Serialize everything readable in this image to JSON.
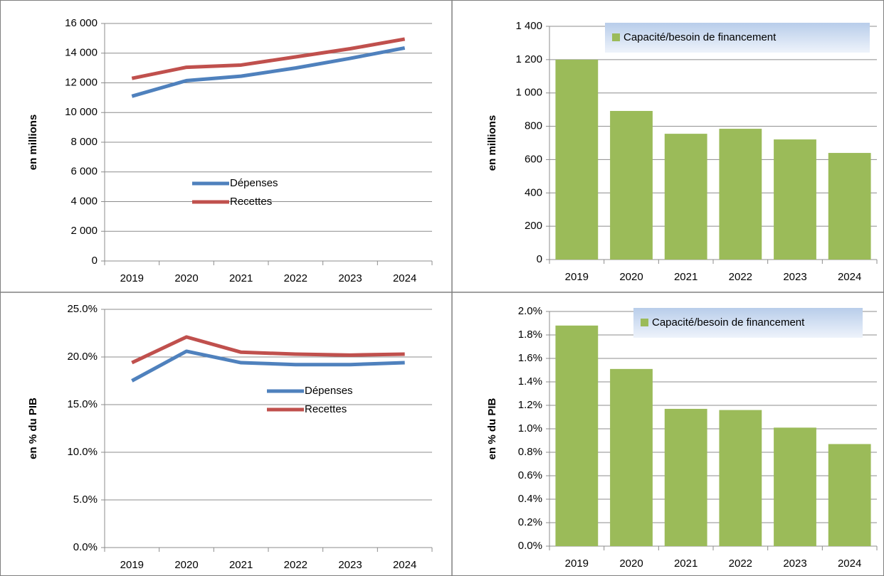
{
  "chart_data": [
    {
      "type": "line",
      "ylabel": "en millions",
      "categories": [
        "2019",
        "2020",
        "2021",
        "2022",
        "2023",
        "2024"
      ],
      "series": [
        {
          "name": "Dépenses",
          "color": "#4f81bd",
          "values": [
            11100,
            12150,
            12450,
            13000,
            13650,
            14350
          ]
        },
        {
          "name": "Recettes",
          "color": "#c0504d",
          "values": [
            12300,
            13050,
            13200,
            13750,
            14300,
            14950
          ]
        }
      ],
      "ylim": [
        0,
        16000
      ],
      "yticks": [
        0,
        {
          "value": 2000,
          "label": "2 000"
        },
        {
          "value": 4000,
          "label": "4 000"
        },
        {
          "value": 6000,
          "label": "6 000"
        },
        {
          "value": 8000,
          "label": "8 000"
        },
        {
          "value": 10000,
          "label": "10 000"
        },
        {
          "value": 12000,
          "label": "12 000"
        },
        {
          "value": 14000,
          "label": "14 000"
        },
        {
          "value": 16000,
          "label": "16 000"
        }
      ],
      "grid": true,
      "legend": "center"
    },
    {
      "type": "bar",
      "ylabel": "en millions",
      "categories": [
        "2019",
        "2020",
        "2021",
        "2022",
        "2023",
        "2024"
      ],
      "series": [
        {
          "name": "Capacité/besoin de financement",
          "color": "#9bbb59",
          "values": [
            1200,
            892,
            755,
            785,
            721,
            640
          ]
        }
      ],
      "ylim": [
        0,
        1400
      ],
      "yticks": [
        0,
        200,
        400,
        600,
        800,
        {
          "value": 1000,
          "label": "1 000"
        },
        {
          "value": 1200,
          "label": "1 200"
        },
        {
          "value": 1400,
          "label": "1 400"
        }
      ],
      "grid": true,
      "legend": "top"
    },
    {
      "type": "line",
      "ylabel": "en % du PIB",
      "categories": [
        "2019",
        "2020",
        "2021",
        "2022",
        "2023",
        "2024"
      ],
      "series": [
        {
          "name": "Dépenses",
          "color": "#4f81bd",
          "values": [
            17.5,
            20.6,
            19.4,
            19.2,
            19.2,
            19.4
          ]
        },
        {
          "name": "Recettes",
          "color": "#c0504d",
          "values": [
            19.4,
            22.1,
            20.5,
            20.3,
            20.2,
            20.3
          ]
        }
      ],
      "ylim": [
        0,
        25
      ],
      "yticks": [
        {
          "value": 0,
          "label": "0.0%"
        },
        {
          "value": 5,
          "label": "5.0%"
        },
        {
          "value": 10,
          "label": "10.0%"
        },
        {
          "value": 15,
          "label": "15.0%"
        },
        {
          "value": 20,
          "label": "20.0%"
        },
        {
          "value": 25,
          "label": "25.0%"
        }
      ],
      "grid": true,
      "legend": "center"
    },
    {
      "type": "bar",
      "ylabel": "en % du PIB",
      "categories": [
        "2019",
        "2020",
        "2021",
        "2022",
        "2023",
        "2024"
      ],
      "series": [
        {
          "name": "Capacité/besoin de financement",
          "color": "#9bbb59",
          "values": [
            1.88,
            1.51,
            1.17,
            1.16,
            1.01,
            0.87
          ]
        }
      ],
      "ylim": [
        0,
        2
      ],
      "yticks": [
        {
          "value": 0,
          "label": "0.0%"
        },
        {
          "value": 0.2,
          "label": "0.2%"
        },
        {
          "value": 0.4,
          "label": "0.4%"
        },
        {
          "value": 0.6,
          "label": "0.6%"
        },
        {
          "value": 0.8,
          "label": "0.8%"
        },
        {
          "value": 1.0,
          "label": "1.0%"
        },
        {
          "value": 1.2,
          "label": "1.2%"
        },
        {
          "value": 1.4,
          "label": "1.4%"
        },
        {
          "value": 1.6,
          "label": "1.6%"
        },
        {
          "value": 1.8,
          "label": "1.8%"
        },
        {
          "value": 2.0,
          "label": "2.0%"
        }
      ],
      "grid": true,
      "legend": "top"
    }
  ]
}
